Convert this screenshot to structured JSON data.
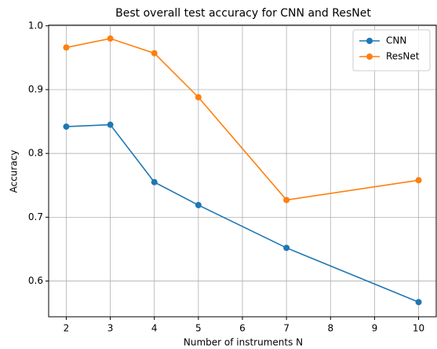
{
  "chart_data": {
    "type": "line",
    "title": "Best overall test accuracy for CNN and ResNet",
    "x_label": "Number of instruments N",
    "y_label": "Accuracy",
    "x": [
      2,
      3,
      4,
      5,
      7,
      10
    ],
    "series": [
      {
        "name": "CNN",
        "color": "#1f77b4",
        "values": [
          0.842,
          0.845,
          0.755,
          0.719,
          0.652,
          0.567
        ]
      },
      {
        "name": "ResNet",
        "color": "#ff7f0e",
        "values": [
          0.966,
          0.98,
          0.957,
          0.888,
          0.727,
          0.758
        ]
      }
    ],
    "xlim": [
      1.6,
      10.4
    ],
    "xticks": [
      2,
      3,
      4,
      5,
      6,
      7,
      8,
      9,
      10
    ],
    "ylim": [
      0.544,
      1.001
    ],
    "yticks": [
      0.6,
      0.7,
      0.8,
      0.9,
      {
        "value": 1,
        "label": "1.0"
      }
    ],
    "grid": true,
    "legend": "upper-right"
  }
}
